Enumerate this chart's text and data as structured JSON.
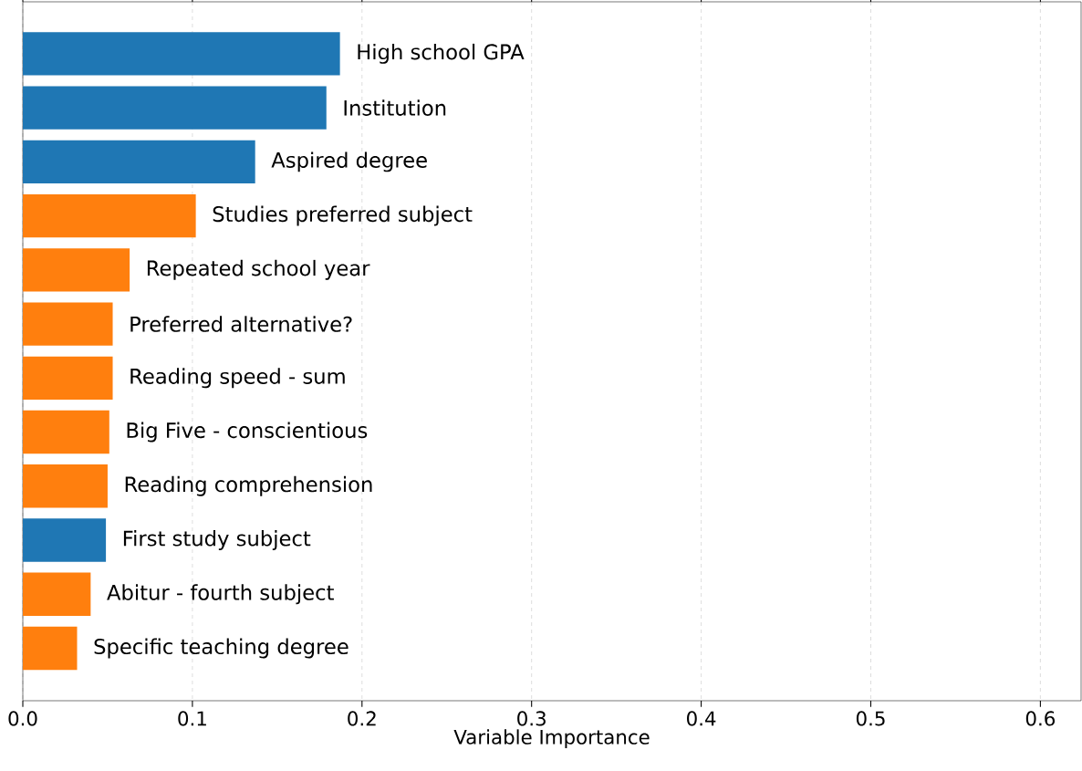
{
  "chart_data": {
    "type": "bar",
    "orientation": "horizontal",
    "xlabel": "Variable Importance",
    "categories": [
      "High school GPA",
      "Institution",
      "Aspired degree",
      "Studies preferred subject",
      "Repeated school year",
      "Preferred alternative?",
      "Reading speed - sum",
      "Big Five - conscientious",
      "Reading comprehension",
      "First study subject",
      "Abitur - fourth subject",
      "Specific teaching degree"
    ],
    "values": [
      0.187,
      0.179,
      0.137,
      0.102,
      0.063,
      0.053,
      0.053,
      0.051,
      0.05,
      0.049,
      0.04,
      0.032
    ],
    "colors": [
      "#1f77b4",
      "#1f77b4",
      "#1f77b4",
      "#ff7f0e",
      "#ff7f0e",
      "#ff7f0e",
      "#ff7f0e",
      "#ff7f0e",
      "#ff7f0e",
      "#1f77b4",
      "#ff7f0e",
      "#ff7f0e"
    ],
    "xlim": [
      0,
      0.624
    ],
    "xticks": [
      {
        "value": 0,
        "label": "0.0"
      },
      0.1,
      0.2,
      0.3,
      0.4,
      0.5,
      0.6
    ],
    "grid": "x",
    "tick_labels": "x"
  }
}
